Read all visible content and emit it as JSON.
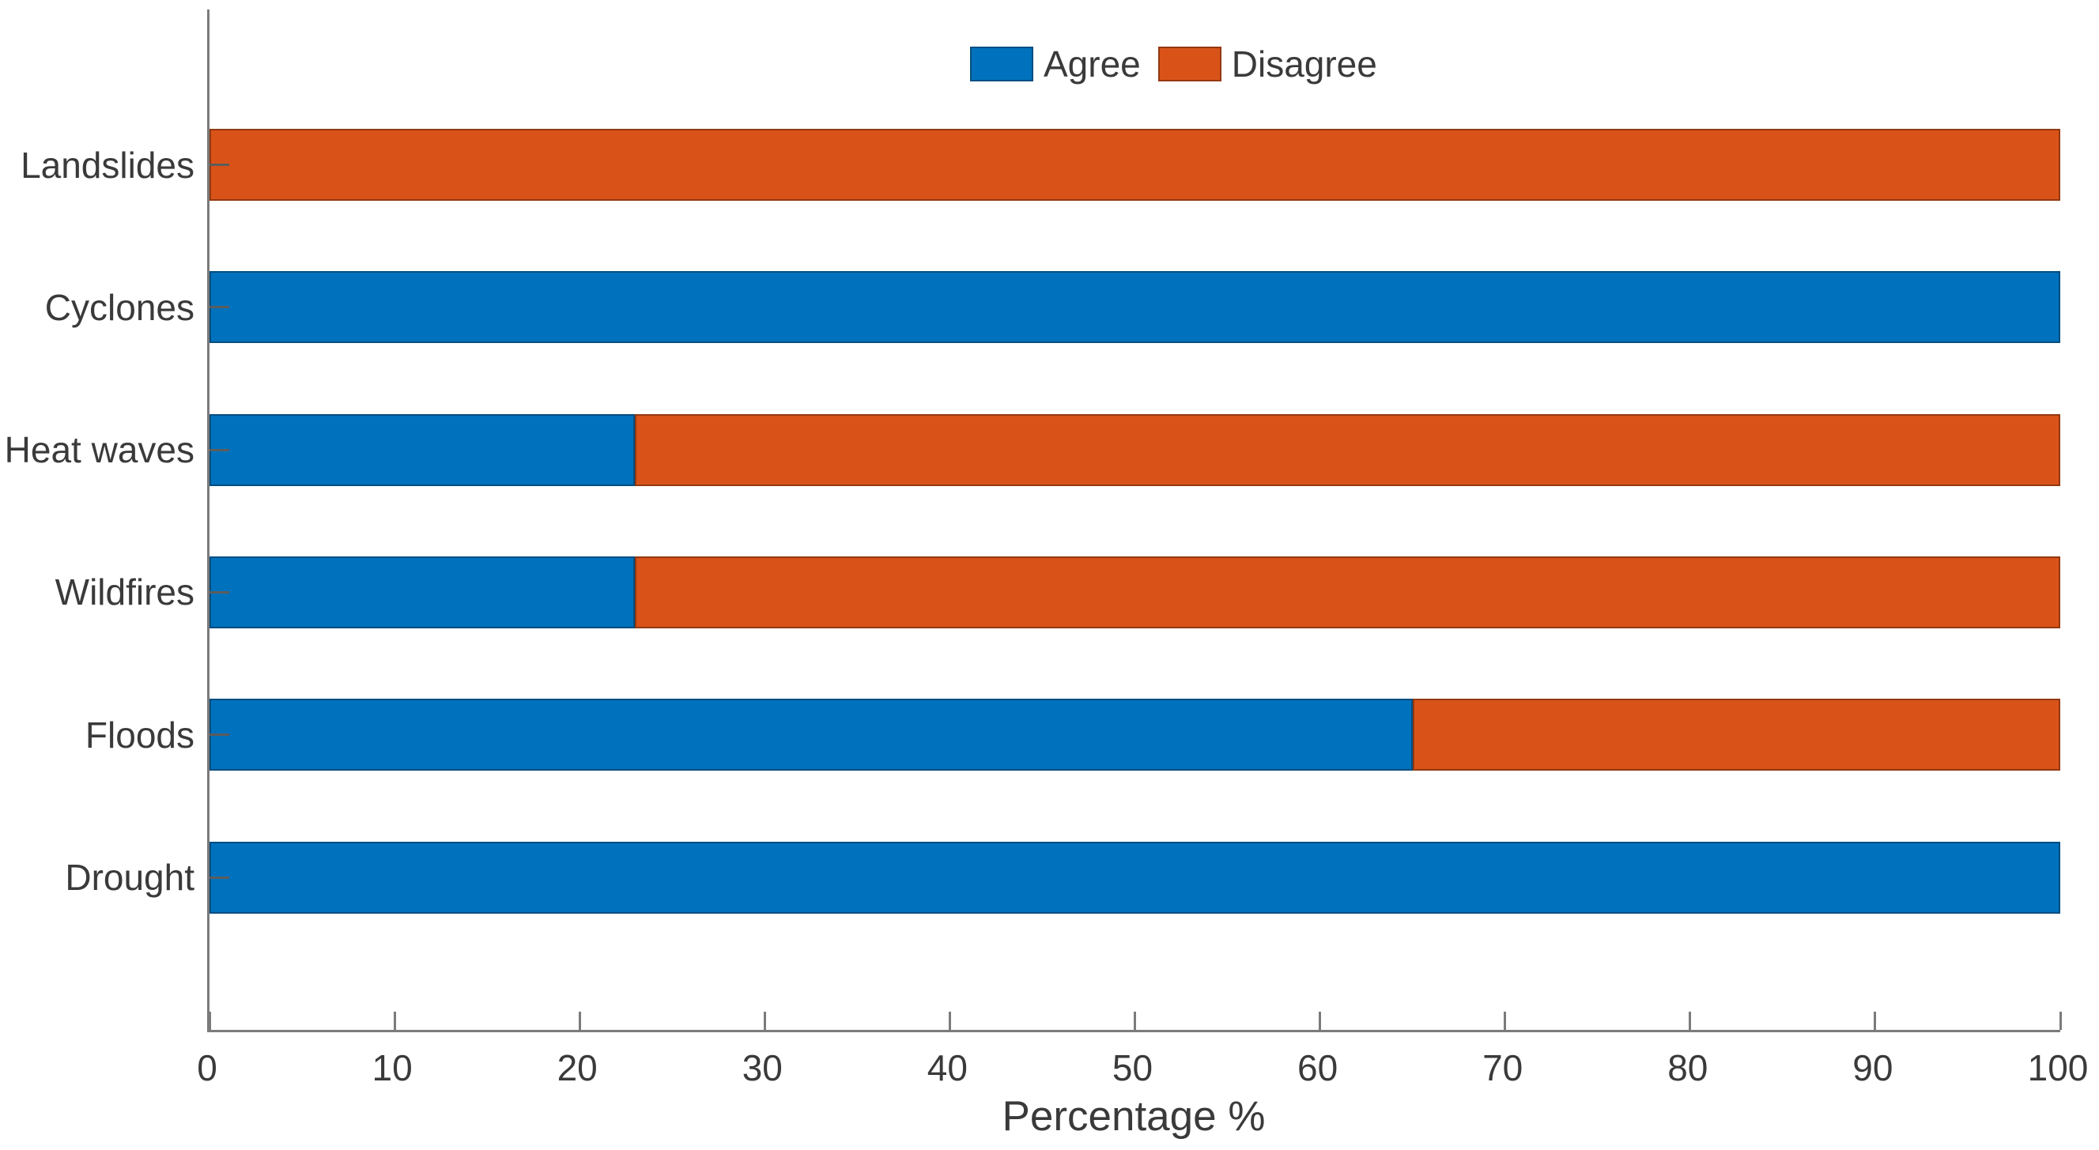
{
  "chart_data": {
    "type": "bar",
    "orientation": "horizontal",
    "stacked": true,
    "title": "",
    "xlabel": "Percentage %",
    "ylabel": "",
    "xlim": [
      0,
      100
    ],
    "xticks": [
      0,
      10,
      20,
      30,
      40,
      50,
      60,
      70,
      80,
      90,
      100
    ],
    "grid": false,
    "legend_position": "top-center",
    "categories_top_to_bottom": [
      "Landslides",
      "Cyclones",
      "Heat waves",
      "Wildfires",
      "Floods",
      "Drought"
    ],
    "series": [
      {
        "name": "Agree",
        "color": "#0072BD",
        "values": [
          0,
          100,
          23,
          23,
          65,
          100
        ]
      },
      {
        "name": "Disagree",
        "color": "#D95319",
        "values": [
          100,
          0,
          77,
          77,
          35,
          0
        ]
      }
    ],
    "axis_color": "#7b7b7b",
    "text_color": "#3a3a3a"
  }
}
